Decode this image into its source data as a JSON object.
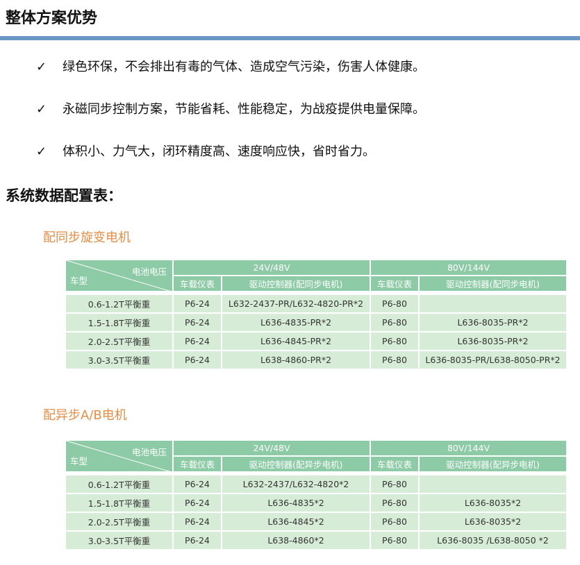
{
  "heading": "整体方案优势",
  "bullets": [
    {
      "icon": "check-icon",
      "mark": "✓",
      "text": "绿色环保，不会排出有毒的气体、造成空气污染，伤害人体健康。"
    },
    {
      "icon": "check-icon",
      "mark": "✓",
      "text": "永磁同步控制方案，节能省耗、性能稳定，为战疫提供电量保障。"
    },
    {
      "icon": "check-icon",
      "mark": "✓",
      "text": "体积小、力气大，闭环精度高、速度响应快，省时省力。"
    }
  ],
  "section_title": "系统数据配置表：",
  "colors": {
    "accent_line": "#6a98c6",
    "subtitle": "#e48d45",
    "header_bg": "#8ccba6",
    "body_bg": "#d6ecd7"
  },
  "tables": [
    {
      "title": "配同步旋变电机",
      "corner_top": "电池电压",
      "corner_bottom": "车型",
      "groups": [
        "24V/48V",
        "80V/144V"
      ],
      "subheaders": [
        "车载仪表",
        "驱动控制器(配同步电机)",
        "车载仪表",
        "驱动控制器(配同步电机)"
      ],
      "rows": [
        [
          "0.6-1.2T平衡重",
          "P6-24",
          "L632-2437-PR/L632-4820-PR*2",
          "P6-80",
          ""
        ],
        [
          "1.5-1.8T平衡重",
          "P6-24",
          "L636-4835-PR*2",
          "P6-80",
          "L636-8035-PR*2"
        ],
        [
          "2.0-2.5T平衡重",
          "P6-24",
          "L636-4845-PR*2",
          "P6-80",
          "L636-8035-PR*2"
        ],
        [
          "3.0-3.5T平衡重",
          "P6-24",
          "L638-4860-PR*2",
          "P6-80",
          "L636-8035-PR/L638-8050-PR*2"
        ]
      ]
    },
    {
      "title": "配异步A/B电机",
      "corner_top": "电池电压",
      "corner_bottom": "车型",
      "groups": [
        "24V/48V",
        "80V/144V"
      ],
      "subheaders": [
        "车载仪表",
        "驱动控制器(配异步电机)",
        "车载仪表",
        "驱动控制器(配异步电机)"
      ],
      "rows": [
        [
          "0.6-1.2T平衡重",
          "P6-24",
          "L632-2437/L632-4820*2",
          "P6-80",
          ""
        ],
        [
          "1.5-1.8T平衡重",
          "P6-24",
          "L636-4835*2",
          "P6-80",
          "L636-8035*2"
        ],
        [
          "2.0-2.5T平衡重",
          "P6-24",
          "L636-4845*2",
          "P6-80",
          "L636-8035*2"
        ],
        [
          "3.0-3.5T平衡重",
          "P6-24",
          "L638-4860*2",
          "P6-80",
          "L636-8035 /L638-8050 *2"
        ]
      ]
    }
  ]
}
